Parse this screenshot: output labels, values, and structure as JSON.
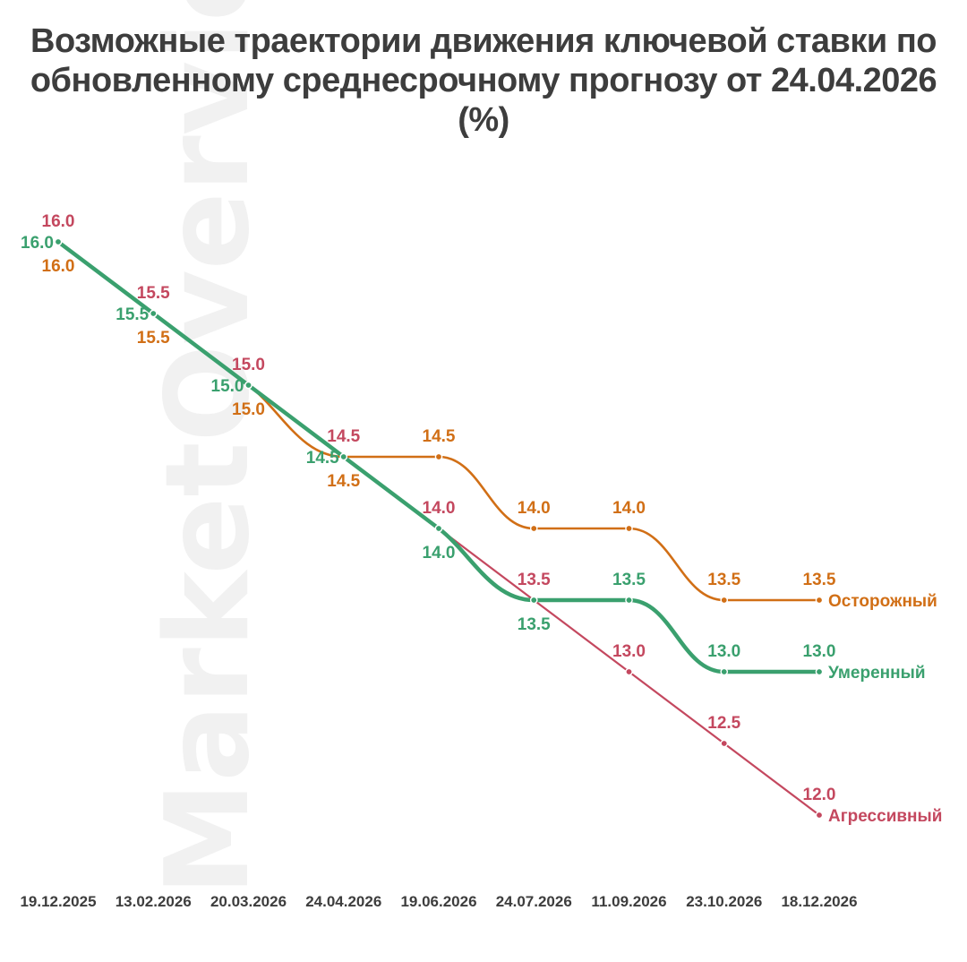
{
  "watermark": "MarketOverview",
  "chart_data": {
    "type": "line",
    "title": "Возможные траектории движения ключевой ставки по обновленному среднесрочному прогнозу от 24.04.2026 (%)",
    "xlabel": "",
    "ylabel": "",
    "x": [
      "19.12.2025",
      "13.02.2026",
      "20.03.2026",
      "24.04.2026",
      "19.06.2026",
      "24.07.2026",
      "11.09.2026",
      "23.10.2026",
      "18.12.2026"
    ],
    "ylim": [
      11.5,
      16.5
    ],
    "grid": false,
    "legend": "end-of-line labels",
    "series": [
      {
        "name": "Агрессивный",
        "color": "#c4485f",
        "values": [
          16.0,
          15.5,
          15.0,
          14.5,
          14.0,
          13.5,
          13.0,
          12.5,
          12.0
        ]
      },
      {
        "name": "Умеренный",
        "color": "#3aa06e",
        "values": [
          16.0,
          15.5,
          15.0,
          14.5,
          14.0,
          13.5,
          13.5,
          13.0,
          13.0
        ]
      },
      {
        "name": "Осторожный",
        "color": "#d16f16",
        "values": [
          16.0,
          15.5,
          15.0,
          14.5,
          14.5,
          14.0,
          14.0,
          13.5,
          13.5
        ]
      }
    ]
  }
}
